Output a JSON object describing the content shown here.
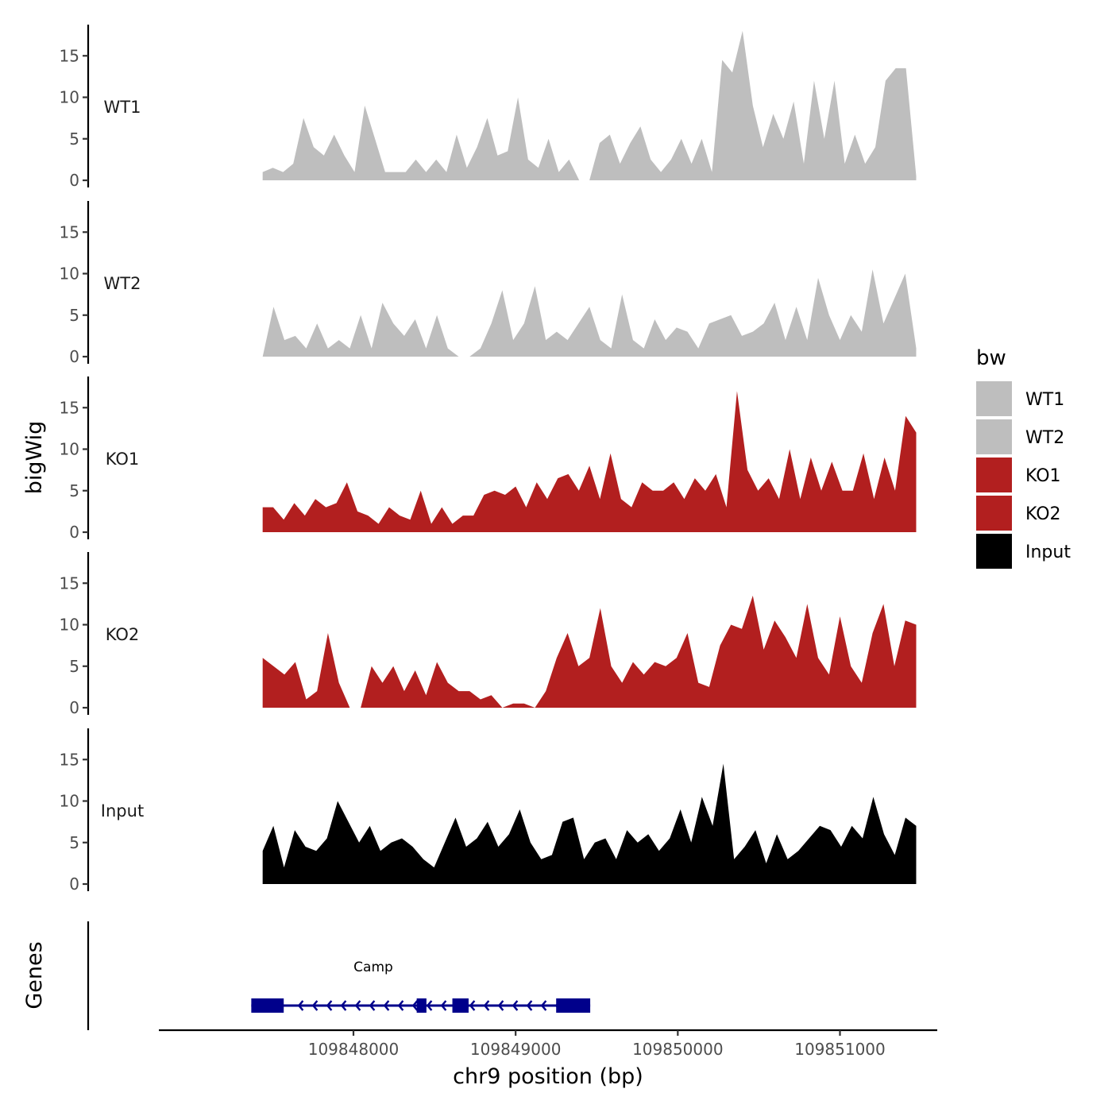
{
  "chart_data": {
    "type": "area",
    "title": "",
    "xlabel": "chr9 position (bp)",
    "ylabel": "bigWig",
    "genes_ylabel": "Genes",
    "xlim": [
      109846800,
      109851600
    ],
    "ylim": [
      0,
      19
    ],
    "x_ticks": [
      109848000,
      109849000,
      109850000,
      109851000
    ],
    "y_ticks": [
      0,
      5,
      10,
      15
    ],
    "region_start": 109847440,
    "region_end": 109851470,
    "legend": {
      "title": "bw",
      "position": "right",
      "entries": [
        {
          "label": "WT1",
          "color": "#bebebe"
        },
        {
          "label": "WT2",
          "color": "#bebebe"
        },
        {
          "label": "KO1",
          "color": "#b21f1f"
        },
        {
          "label": "KO2",
          "color": "#b21f1f"
        },
        {
          "label": "Input",
          "color": "#000000"
        }
      ]
    },
    "series": [
      {
        "name": "WT1",
        "color": "#bebebe",
        "values": [
          1,
          1.5,
          1,
          2,
          7.5,
          4,
          3,
          5.5,
          3,
          1,
          9,
          5,
          1,
          1,
          1,
          2.5,
          1,
          2.5,
          1,
          5.5,
          1.5,
          4,
          7.5,
          3,
          3.5,
          10,
          2.5,
          1.5,
          5,
          1,
          2.5,
          0,
          0,
          4.5,
          5.5,
          2,
          4.5,
          6.5,
          2.5,
          1,
          2.5,
          5,
          2,
          5,
          1,
          14.5,
          13,
          18,
          9,
          4,
          8,
          5,
          9.5,
          2,
          12,
          5,
          12,
          2,
          5.5,
          2,
          4,
          12,
          13.5,
          13.5,
          0.5
        ]
      },
      {
        "name": "WT2",
        "color": "#bebebe",
        "values": [
          0,
          6,
          2,
          2.5,
          1,
          4,
          1,
          2,
          1,
          5,
          1,
          6.5,
          4,
          2.5,
          4.5,
          1,
          5,
          1,
          0,
          0,
          1,
          4,
          8,
          2,
          4,
          8.5,
          2,
          3,
          2,
          4,
          6,
          2,
          1,
          7.5,
          2,
          1,
          4.5,
          2,
          3.5,
          3,
          1,
          4,
          4.5,
          5,
          2.5,
          3,
          4,
          6.5,
          2,
          6,
          2,
          9.5,
          5,
          2,
          5,
          3,
          10.5,
          4,
          7,
          10,
          1
        ]
      },
      {
        "name": "KO1",
        "color": "#b21f1f",
        "values": [
          3,
          3,
          1.5,
          3.5,
          2,
          4,
          3,
          3.5,
          6,
          2.5,
          2,
          1,
          3,
          2,
          1.5,
          5,
          1,
          3,
          1,
          2,
          2,
          4.5,
          5,
          4.5,
          5.5,
          3,
          6,
          4,
          6.5,
          7,
          5,
          8,
          4,
          9.5,
          4,
          3,
          6,
          5,
          5,
          6,
          4,
          6.5,
          5,
          7,
          3,
          17,
          7.5,
          5,
          6.5,
          4,
          10,
          4,
          9,
          5,
          8.5,
          5,
          5,
          9.5,
          4,
          9,
          5,
          14,
          12
        ]
      },
      {
        "name": "KO2",
        "color": "#b21f1f",
        "values": [
          6,
          5,
          4,
          5.5,
          1,
          2,
          9,
          3,
          0,
          0,
          5,
          3,
          5,
          2,
          4.5,
          1.5,
          5.5,
          3,
          2,
          2,
          1,
          1.5,
          0,
          0.5,
          0.5,
          0,
          2,
          6,
          9,
          5,
          6,
          12,
          5,
          3,
          5.5,
          4,
          5.5,
          5,
          6,
          9,
          3,
          2.5,
          7.5,
          10,
          9.5,
          13.5,
          7,
          10.5,
          8.5,
          6,
          12.5,
          6,
          4,
          11,
          5,
          3,
          9,
          12.5,
          5,
          10.5,
          10
        ]
      },
      {
        "name": "Input",
        "color": "#000000",
        "values": [
          4,
          7,
          2,
          6.5,
          4.5,
          4,
          5.5,
          10,
          7.5,
          5,
          7,
          4,
          5,
          5.5,
          4.5,
          3,
          2,
          5,
          8,
          4.5,
          5.5,
          7.5,
          4.5,
          6,
          9,
          5,
          3,
          3.5,
          7.5,
          8,
          3,
          5,
          5.5,
          3,
          6.5,
          5,
          6,
          4,
          5.5,
          9,
          5,
          10.5,
          7,
          14.5,
          3,
          4.5,
          6.5,
          2.5,
          6,
          3,
          4,
          5.5,
          7,
          6.5,
          4.5,
          7,
          5.5,
          10.5,
          6,
          3.5,
          8,
          7
        ]
      }
    ],
    "genes": [
      {
        "name": "Camp",
        "strand": "-",
        "start": 109847370,
        "end": 109849460,
        "exons": [
          [
            109847370,
            109847570
          ],
          [
            109848390,
            109848450
          ],
          [
            109848610,
            109848710
          ],
          [
            109849250,
            109849460
          ]
        ],
        "color": "#00008b"
      }
    ]
  }
}
